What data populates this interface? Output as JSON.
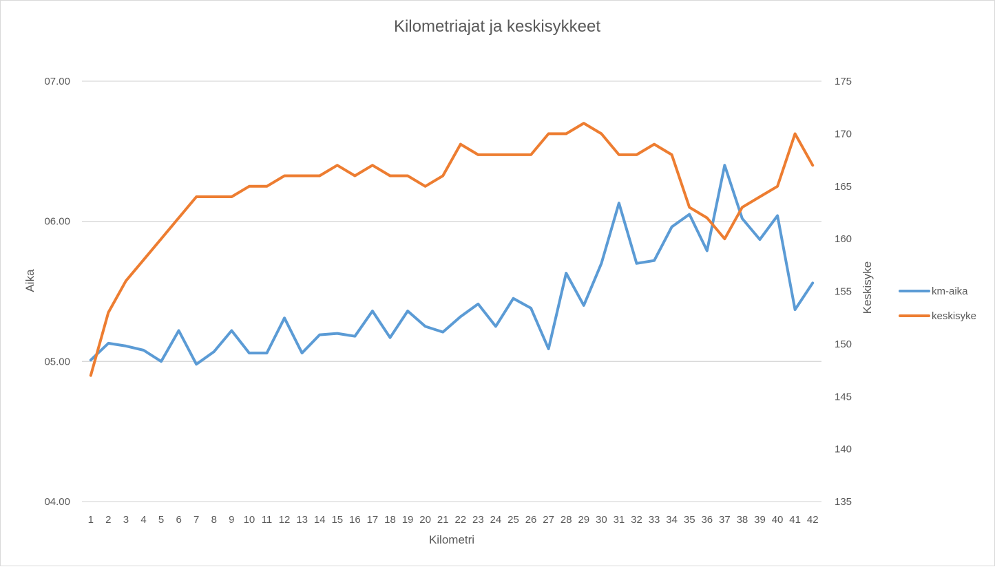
{
  "chart_data": {
    "type": "line",
    "title": "Kilometriajat ja keskisykkeet",
    "xlabel": "Kilometri",
    "ylabel": "Aika",
    "y2label": "Keskisyke",
    "categories": [
      "1",
      "2",
      "3",
      "4",
      "5",
      "6",
      "7",
      "8",
      "9",
      "10",
      "11",
      "12",
      "13",
      "14",
      "15",
      "16",
      "17",
      "18",
      "19",
      "20",
      "21",
      "22",
      "23",
      "24",
      "25",
      "26",
      "27",
      "28",
      "29",
      "30",
      "31",
      "32",
      "33",
      "34",
      "35",
      "36",
      "37",
      "38",
      "39",
      "40",
      "41",
      "42"
    ],
    "ylim": [
      4.0,
      7.0
    ],
    "y_ticks": [
      "04.00",
      "05.00",
      "06.00",
      "07.00"
    ],
    "y_tick_values": [
      4.0,
      5.0,
      6.0,
      7.0
    ],
    "y2lim": [
      135,
      175
    ],
    "y2_ticks": [
      "135",
      "140",
      "145",
      "150",
      "155",
      "160",
      "165",
      "170",
      "175"
    ],
    "y2_tick_values": [
      135,
      140,
      145,
      150,
      155,
      160,
      165,
      170,
      175
    ],
    "grid": true,
    "legend_position": "right",
    "series": [
      {
        "name": "km-aika",
        "axis": "left",
        "color": "#5b9bd5",
        "values": [
          5.01,
          5.13,
          5.11,
          5.08,
          5.0,
          5.22,
          4.98,
          5.07,
          5.22,
          5.06,
          5.06,
          5.31,
          5.06,
          5.19,
          5.2,
          5.18,
          5.36,
          5.17,
          5.36,
          5.25,
          5.21,
          5.32,
          5.41,
          5.25,
          5.45,
          5.38,
          5.09,
          5.63,
          5.4,
          5.7,
          6.13,
          5.7,
          5.72,
          5.96,
          6.05,
          5.79,
          6.4,
          6.02,
          5.87,
          6.04,
          5.37,
          5.56
        ]
      },
      {
        "name": "keskisyke",
        "axis": "right",
        "color": "#ed7d31",
        "values": [
          147,
          153,
          156,
          158,
          160,
          162,
          164,
          164,
          164,
          165,
          165,
          166,
          166,
          166,
          167,
          166,
          167,
          166,
          166,
          165,
          166,
          169,
          168,
          168,
          168,
          168,
          170,
          170,
          171,
          170,
          168,
          168,
          169,
          168,
          163,
          162,
          160,
          163,
          164,
          165,
          170,
          167
        ]
      }
    ]
  }
}
